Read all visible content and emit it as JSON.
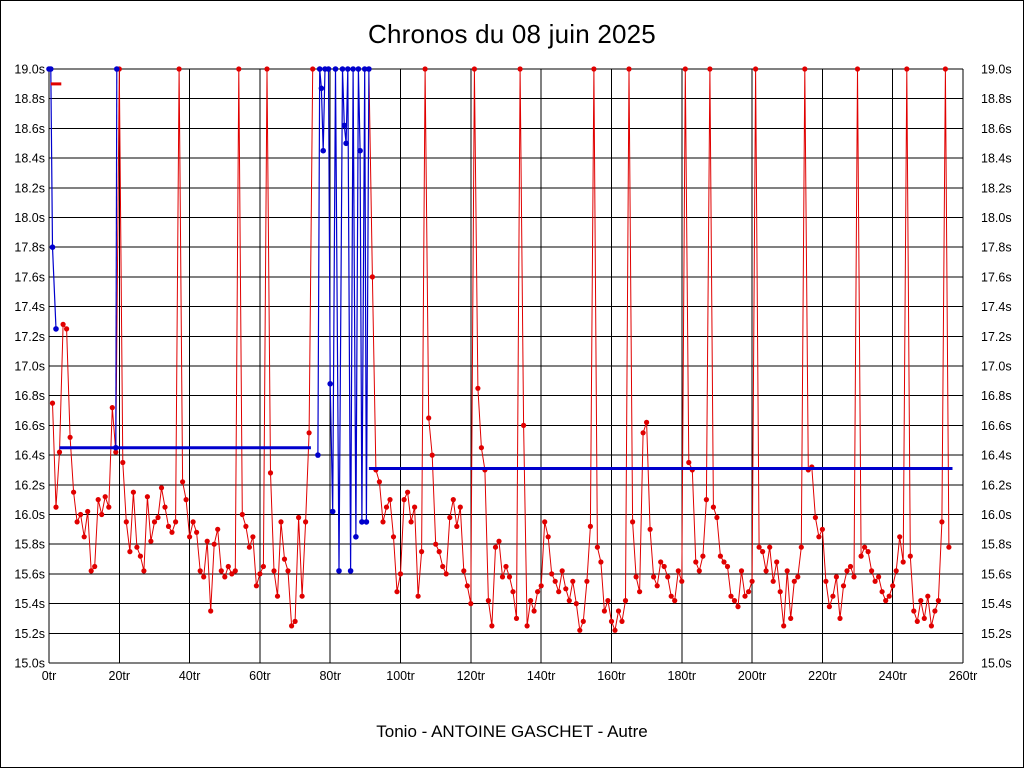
{
  "title": "Chronos du 08 juin 2025",
  "footer": "Tonio - ANTOINE GASCHET - Autre",
  "colors": {
    "red_series": "#e00000",
    "blue_series": "#0000cd",
    "average_line": "#0000cd",
    "grid": "#000000",
    "background": "#ffffff"
  },
  "chart_data": {
    "type": "line",
    "title": "Chronos du 08 juin 2025",
    "subtitle": "Tonio - ANTOINE GASCHET - Autre",
    "x_unit": "tr",
    "y_unit": "s",
    "xlim": [
      0,
      260
    ],
    "ylim": [
      15.0,
      19.0
    ],
    "grid": true,
    "xticks": [
      "0tr",
      "20tr",
      "40tr",
      "60tr",
      "80tr",
      "100tr",
      "120tr",
      "140tr",
      "160tr",
      "180tr",
      "200tr",
      "220tr",
      "240tr",
      "260tr"
    ],
    "yticks": [
      "19.0s",
      "18.8s",
      "18.6s",
      "18.4s",
      "18.2s",
      "18.0s",
      "17.8s",
      "17.6s",
      "17.4s",
      "17.2s",
      "17.0s",
      "16.8s",
      "16.6s",
      "16.4s",
      "16.2s",
      "16.0s",
      "15.8s",
      "15.6s",
      "15.4s",
      "15.2s",
      "15.0s"
    ],
    "series": [
      {
        "name": "chronos-rouge",
        "color": "#e00000",
        "marker_radius": 2.6,
        "start_lap": 1,
        "values": [
          16.75,
          16.05,
          16.42,
          17.28,
          17.25,
          16.52,
          16.15,
          15.95,
          16.0,
          15.85,
          16.02,
          15.62,
          15.65,
          16.1,
          16.0,
          16.12,
          16.05,
          16.72,
          16.42,
          19.0,
          16.35,
          15.95,
          15.75,
          16.15,
          15.78,
          15.72,
          15.62,
          16.12,
          15.82,
          15.95,
          15.98,
          16.18,
          16.05,
          15.92,
          15.88,
          15.95,
          19.0,
          16.22,
          16.1,
          15.85,
          15.95,
          15.88,
          15.62,
          15.58,
          15.82,
          15.35,
          15.8,
          15.9,
          15.62,
          15.58,
          15.65,
          15.6,
          15.62,
          19.0,
          16.0,
          15.92,
          15.78,
          15.85,
          15.52,
          15.6,
          15.65,
          19.0,
          16.28,
          15.62,
          15.45,
          15.95,
          15.7,
          15.62,
          15.25,
          15.28,
          15.98,
          15.45,
          15.95,
          16.55,
          19.0,
          null,
          null,
          null,
          null,
          null,
          null,
          null,
          null,
          null,
          null,
          null,
          null,
          null,
          null,
          null,
          19.0,
          17.6,
          16.3,
          16.22,
          15.95,
          16.05,
          16.1,
          15.85,
          15.48,
          15.6,
          16.1,
          16.15,
          15.95,
          16.05,
          15.45,
          15.75,
          19.0,
          16.65,
          16.4,
          15.8,
          15.75,
          15.65,
          15.6,
          15.98,
          16.1,
          15.92,
          16.05,
          15.62,
          15.52,
          15.4,
          19.0,
          16.85,
          16.45,
          16.3,
          15.42,
          15.25,
          15.78,
          15.82,
          15.58,
          15.65,
          15.58,
          15.48,
          15.3,
          19.0,
          16.6,
          15.25,
          15.42,
          15.35,
          15.48,
          15.52,
          15.95,
          15.85,
          15.6,
          15.55,
          15.48,
          15.62,
          15.5,
          15.42,
          15.55,
          15.4,
          15.22,
          15.28,
          15.55,
          15.92,
          19.0,
          15.78,
          15.68,
          15.35,
          15.42,
          15.28,
          15.22,
          15.35,
          15.28,
          15.42,
          19.0,
          15.95,
          15.58,
          15.48,
          16.55,
          16.62,
          15.9,
          15.58,
          15.52,
          15.68,
          15.65,
          15.58,
          15.45,
          15.42,
          15.62,
          15.55,
          19.0,
          16.35,
          16.3,
          15.68,
          15.62,
          15.72,
          16.1,
          19.0,
          16.05,
          15.98,
          15.72,
          15.68,
          15.65,
          15.45,
          15.42,
          15.38,
          15.62,
          15.45,
          15.48,
          15.55,
          19.0,
          15.78,
          15.75,
          15.62,
          15.78,
          15.55,
          15.68,
          15.48,
          15.25,
          15.62,
          15.3,
          15.55,
          15.58,
          15.78,
          19.0,
          16.3,
          16.32,
          15.98,
          15.85,
          15.9,
          15.55,
          15.38,
          15.45,
          15.58,
          15.3,
          15.52,
          15.62,
          15.65,
          15.58,
          19.0,
          15.72,
          15.78,
          15.75,
          15.62,
          15.55,
          15.58,
          15.48,
          15.42,
          15.45,
          15.52,
          15.62,
          15.85,
          15.68,
          19.0,
          15.72,
          15.35,
          15.28,
          15.42,
          15.3,
          15.45,
          15.25,
          15.35,
          15.42,
          15.95,
          19.0,
          15.78
        ]
      },
      {
        "name": "chronos-bleu",
        "color": "#0000cd",
        "marker_radius": 2.8,
        "segments": [
          [
            [
              0,
              19.0
            ],
            [
              0.5,
              19.0
            ],
            [
              1,
              17.8
            ],
            [
              2,
              17.25
            ]
          ],
          [
            [
              19,
              16.45
            ],
            [
              19.3,
              19.0
            ]
          ],
          [
            [
              76.5,
              16.4
            ],
            [
              77,
              19.0
            ],
            [
              77.5,
              18.87
            ],
            [
              78,
              18.45
            ],
            [
              78.5,
              19.0
            ],
            [
              79.5,
              19.0
            ],
            [
              80,
              16.88
            ],
            [
              80.7,
              16.02
            ],
            [
              81.5,
              19.0
            ],
            [
              82.5,
              15.62
            ],
            [
              83.5,
              19.0
            ],
            [
              84,
              18.62
            ],
            [
              84.5,
              18.5
            ],
            [
              85,
              19.0
            ],
            [
              85.8,
              15.62
            ],
            [
              86.5,
              19.0
            ],
            [
              87.3,
              15.85
            ],
            [
              88,
              19.0
            ],
            [
              88.5,
              18.45
            ],
            [
              89,
              15.95
            ],
            [
              89.8,
              19.0
            ],
            [
              90.3,
              15.95
            ],
            [
              91,
              19.0
            ]
          ]
        ]
      }
    ],
    "reference_lines": [
      {
        "name": "moyenne-relais-1",
        "color": "#0000cd",
        "width": 3,
        "y": 16.45,
        "x1": 3,
        "x2": 74.5
      },
      {
        "name": "moyenne-relais-2",
        "color": "#0000cd",
        "width": 3,
        "y": 16.31,
        "x1": 91,
        "x2": 257
      },
      {
        "name": "repere-rouge",
        "color": "#e00000",
        "width": 3,
        "y": 18.9,
        "x1": 0.5,
        "x2": 3.5
      }
    ]
  }
}
